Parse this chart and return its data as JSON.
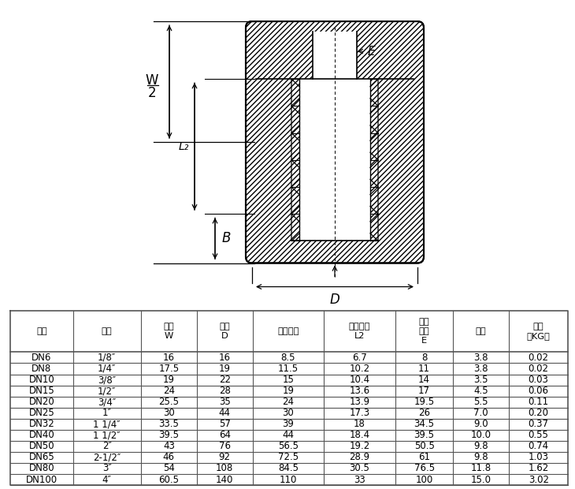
{
  "headers": [
    "规格",
    "规格",
    "总长\nW",
    "外径\nD",
    "螺纹内径",
    "螺纹长度\nL2",
    "通孔\n内径\nE",
    "壁厚",
    "重量\n（KG）"
  ],
  "rows": [
    [
      "DN6",
      "1/8″",
      "16",
      "16",
      "8.5",
      "6.7",
      "8",
      "3.8",
      "0.02"
    ],
    [
      "DN8",
      "1/4″",
      "17.5",
      "19",
      "11.5",
      "10.2",
      "11",
      "3.8",
      "0.02"
    ],
    [
      "DN10",
      "3/8″",
      "19",
      "22",
      "15",
      "10.4",
      "14",
      "3.5",
      "0.03"
    ],
    [
      "DN15",
      "1/2″",
      "24",
      "28",
      "19",
      "13.6",
      "17",
      "4.5",
      "0.06"
    ],
    [
      "DN20",
      "3/4″",
      "25.5",
      "35",
      "24",
      "13.9",
      "19.5",
      "5.5",
      "0.11"
    ],
    [
      "DN25",
      "1″",
      "30",
      "44",
      "30",
      "17.3",
      "26",
      "7.0",
      "0.20"
    ],
    [
      "DN32",
      "1 1/4″",
      "33.5",
      "57",
      "39",
      "18",
      "34.5",
      "9.0",
      "0.37"
    ],
    [
      "DN40",
      "1 1/2″",
      "39.5",
      "64",
      "44",
      "18.4",
      "39.5",
      "10.0",
      "0.55"
    ],
    [
      "DN50",
      "2″",
      "43",
      "76",
      "56.5",
      "19.2",
      "50.5",
      "9.8",
      "0.74"
    ],
    [
      "DN65",
      "2-1/2″",
      "46",
      "92",
      "72.5",
      "28.9",
      "61",
      "9.8",
      "1.03"
    ],
    [
      "DN80",
      "3″",
      "54",
      "108",
      "84.5",
      "30.5",
      "76.5",
      "11.8",
      "1.62"
    ],
    [
      "DN100",
      "4″",
      "60.5",
      "140",
      "110",
      "33",
      "100",
      "15.0",
      "3.02"
    ]
  ],
  "bg_color": "#ffffff",
  "border_color": "#555555",
  "text_color": "#000000",
  "col_props": [
    0.092,
    0.1,
    0.082,
    0.082,
    0.105,
    0.105,
    0.085,
    0.082,
    0.087
  ]
}
